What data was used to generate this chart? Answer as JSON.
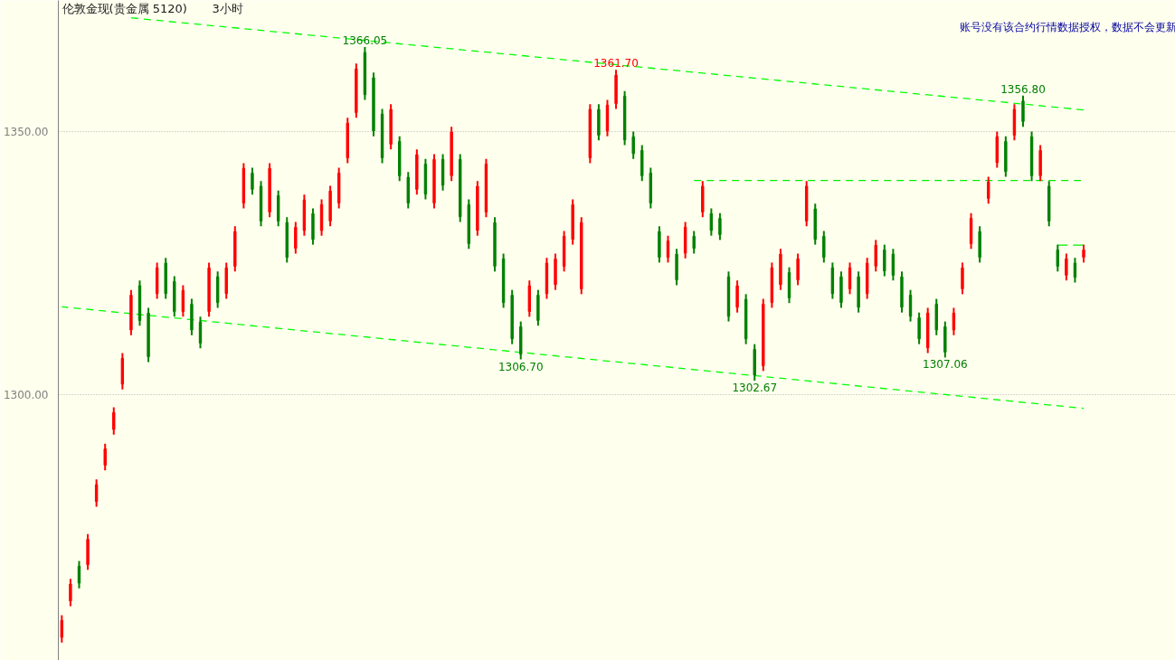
{
  "chart_data": {
    "type": "candlestick",
    "title": "伦敦金现(贵金属 5120)",
    "subtitle": "3小时",
    "annotations": [
      "账号没有该合约行情数据授权，数据不会更新",
      {
        "text": "1366.05",
        "y": 1366.05
      },
      {
        "text": "1361.70",
        "y": 1361.7
      },
      {
        "text": "1356.80",
        "y": 1356.8
      },
      {
        "text": "1306.70",
        "y": 1306.7
      },
      {
        "text": "1302.67",
        "y": 1302.67
      },
      {
        "text": "1307.06",
        "y": 1307.06
      }
    ],
    "categories": [
      null,
      null,
      null,
      null,
      null,
      null,
      null,
      null,
      null,
      null,
      null,
      null,
      null,
      null,
      null,
      null,
      null,
      null,
      null,
      null,
      null,
      null,
      null,
      null,
      null,
      null,
      null,
      null,
      null,
      null,
      null,
      null,
      null,
      null,
      null,
      null,
      null,
      null,
      null,
      null,
      null,
      null,
      null,
      null,
      null,
      null,
      null,
      null,
      null,
      null,
      null,
      null,
      null,
      null,
      null,
      null,
      null,
      null,
      null,
      null,
      null,
      null,
      null,
      null,
      null,
      null,
      null,
      null,
      null,
      null,
      null,
      null,
      null,
      null,
      null,
      null,
      null,
      null,
      null,
      null,
      null,
      null,
      null,
      null,
      null,
      null,
      null,
      null,
      null,
      null,
      null,
      null,
      null,
      null,
      null,
      null,
      null,
      null,
      null,
      null,
      null,
      null,
      null,
      null,
      null,
      null,
      null,
      null,
      null,
      null,
      null,
      null,
      null,
      null,
      null,
      null,
      null,
      null,
      null
    ],
    "ohlc": [
      [
        1253.9,
        1258.1,
        1252.9,
        1257.1
      ],
      [
        1260.8,
        1265.0,
        1259.8,
        1264.0
      ],
      [
        1267.4,
        1268.4,
        1263.2,
        1264.2
      ],
      [
        1267.7,
        1273.5,
        1266.7,
        1272.5
      ],
      [
        1279.7,
        1283.9,
        1278.7,
        1282.9
      ],
      [
        1286.6,
        1290.7,
        1285.6,
        1289.7
      ],
      [
        1293.4,
        1297.6,
        1292.4,
        1296.6
      ],
      [
        1302.0,
        1307.9,
        1301.0,
        1306.9
      ],
      [
        1312.3,
        1319.9,
        1311.3,
        1318.9
      ],
      [
        1320.7,
        1321.7,
        1313.1,
        1314.1
      ],
      [
        1315.5,
        1316.5,
        1306.2,
        1307.2
      ],
      [
        1319.2,
        1325.1,
        1318.2,
        1324.1
      ],
      [
        1325.0,
        1326.0,
        1318.2,
        1319.2
      ],
      [
        1321.5,
        1322.5,
        1314.8,
        1315.8
      ],
      [
        1315.8,
        1320.8,
        1314.8,
        1319.8
      ],
      [
        1317.2,
        1318.2,
        1311.3,
        1312.3
      ],
      [
        1313.8,
        1314.8,
        1308.8,
        1309.8
      ],
      [
        1315.8,
        1325.1,
        1314.8,
        1324.1
      ],
      [
        1322.4,
        1323.4,
        1316.5,
        1317.5
      ],
      [
        1319.2,
        1325.1,
        1318.2,
        1324.1
      ],
      [
        1324.4,
        1332.0,
        1323.4,
        1331.0
      ],
      [
        1336.4,
        1344.0,
        1335.4,
        1343.0
      ],
      [
        1342.1,
        1343.1,
        1338.0,
        1339.0
      ],
      [
        1339.6,
        1340.6,
        1332.0,
        1333.0
      ],
      [
        1334.7,
        1344.0,
        1333.7,
        1343.0
      ],
      [
        1337.8,
        1338.8,
        1332.0,
        1333.0
      ],
      [
        1332.7,
        1333.7,
        1325.1,
        1326.1
      ],
      [
        1327.8,
        1332.8,
        1326.8,
        1331.8
      ],
      [
        1331.2,
        1338.0,
        1330.2,
        1337.0
      ],
      [
        1334.4,
        1335.4,
        1328.5,
        1329.5
      ],
      [
        1331.2,
        1337.1,
        1330.2,
        1336.1
      ],
      [
        1333.0,
        1339.7,
        1332.0,
        1338.7
      ],
      [
        1336.4,
        1343.1,
        1335.4,
        1342.1
      ],
      [
        1345.0,
        1352.6,
        1344.0,
        1351.6
      ],
      [
        1353.6,
        1362.9,
        1352.6,
        1361.9
      ],
      [
        1365.0,
        1366.05,
        1356.0,
        1357.0
      ],
      [
        1360.2,
        1361.2,
        1349.1,
        1350.1
      ],
      [
        1353.3,
        1354.3,
        1344.0,
        1345.0
      ],
      [
        1347.6,
        1355.2,
        1346.6,
        1354.2
      ],
      [
        1348.1,
        1349.1,
        1340.6,
        1341.6
      ],
      [
        1341.3,
        1342.3,
        1335.4,
        1336.4
      ],
      [
        1339.0,
        1346.6,
        1338.0,
        1345.6
      ],
      [
        1343.8,
        1344.8,
        1337.1,
        1338.1
      ],
      [
        1336.4,
        1345.7,
        1335.4,
        1344.7
      ],
      [
        1344.7,
        1345.7,
        1338.8,
        1339.8
      ],
      [
        1341.6,
        1350.9,
        1340.6,
        1349.9
      ],
      [
        1344.7,
        1345.7,
        1332.8,
        1333.8
      ],
      [
        1336.1,
        1337.1,
        1327.7,
        1328.7
      ],
      [
        1331.2,
        1340.6,
        1330.2,
        1339.6
      ],
      [
        1334.7,
        1344.8,
        1333.7,
        1343.8
      ],
      [
        1332.7,
        1333.7,
        1323.4,
        1324.4
      ],
      [
        1325.8,
        1326.8,
        1316.5,
        1317.5
      ],
      [
        1318.9,
        1319.9,
        1309.6,
        1310.6
      ],
      [
        1312.9,
        1313.9,
        1306.7,
        1307.7
      ],
      [
        1315.8,
        1321.7,
        1314.8,
        1320.7
      ],
      [
        1318.9,
        1319.9,
        1313.1,
        1314.1
      ],
      [
        1319.2,
        1326.0,
        1318.2,
        1325.0
      ],
      [
        1320.9,
        1326.8,
        1319.9,
        1325.8
      ],
      [
        1324.4,
        1331.1,
        1323.4,
        1330.1
      ],
      [
        1329.5,
        1337.1,
        1328.5,
        1336.1
      ],
      [
        1320.1,
        1333.7,
        1319.1,
        1332.7
      ],
      [
        1345.0,
        1355.2,
        1344.0,
        1354.2
      ],
      [
        1354.2,
        1355.2,
        1348.3,
        1349.3
      ],
      [
        1350.1,
        1356.0,
        1349.1,
        1355.0
      ],
      [
        1355.3,
        1361.7,
        1354.3,
        1360.7
      ],
      [
        1356.7,
        1357.7,
        1347.4,
        1348.4
      ],
      [
        1349.0,
        1350.0,
        1344.8,
        1345.8
      ],
      [
        1346.4,
        1347.4,
        1340.6,
        1341.6
      ],
      [
        1342.1,
        1343.1,
        1335.4,
        1336.4
      ],
      [
        1331.0,
        1332.0,
        1325.1,
        1326.1
      ],
      [
        1326.1,
        1330.2,
        1325.1,
        1329.2
      ],
      [
        1326.7,
        1327.7,
        1320.8,
        1321.8
      ],
      [
        1326.9,
        1332.8,
        1325.9,
        1331.8
      ],
      [
        1330.1,
        1331.1,
        1326.8,
        1327.8
      ],
      [
        1334.7,
        1340.6,
        1333.7,
        1339.6
      ],
      [
        1334.4,
        1335.4,
        1330.2,
        1331.2
      ],
      [
        1333.5,
        1334.5,
        1329.4,
        1330.4
      ],
      [
        1322.4,
        1323.4,
        1313.9,
        1314.9
      ],
      [
        1316.6,
        1321.7,
        1315.6,
        1320.7
      ],
      [
        1318.1,
        1319.1,
        1309.6,
        1310.6
      ],
      [
        1308.6,
        1309.6,
        1302.67,
        1303.7
      ],
      [
        1305.5,
        1318.2,
        1304.5,
        1317.2
      ],
      [
        1317.5,
        1325.1,
        1316.5,
        1324.1
      ],
      [
        1320.9,
        1327.7,
        1319.9,
        1326.7
      ],
      [
        1323.2,
        1324.2,
        1317.4,
        1318.4
      ],
      [
        1321.8,
        1326.8,
        1320.8,
        1325.8
      ],
      [
        1333.0,
        1340.6,
        1332.0,
        1339.6
      ],
      [
        1335.3,
        1336.3,
        1328.5,
        1329.5
      ],
      [
        1330.1,
        1331.1,
        1325.1,
        1326.1
      ],
      [
        1324.1,
        1325.1,
        1318.2,
        1319.2
      ],
      [
        1322.4,
        1323.4,
        1316.5,
        1317.5
      ],
      [
        1320.1,
        1325.1,
        1319.1,
        1324.1
      ],
      [
        1322.4,
        1323.4,
        1315.6,
        1316.6
      ],
      [
        1319.2,
        1326.0,
        1318.2,
        1325.0
      ],
      [
        1324.4,
        1329.4,
        1323.4,
        1328.4
      ],
      [
        1327.5,
        1328.5,
        1322.5,
        1323.5
      ],
      [
        1326.7,
        1327.7,
        1321.7,
        1322.7
      ],
      [
        1322.4,
        1323.4,
        1315.6,
        1316.6
      ],
      [
        1318.9,
        1319.9,
        1313.9,
        1314.9
      ],
      [
        1314.6,
        1315.6,
        1309.6,
        1310.6
      ],
      [
        1308.9,
        1316.5,
        1307.9,
        1315.5
      ],
      [
        1317.2,
        1318.2,
        1311.3,
        1312.3
      ],
      [
        1312.9,
        1313.9,
        1307.06,
        1308.1
      ],
      [
        1312.3,
        1316.5,
        1311.3,
        1315.5
      ],
      [
        1320.1,
        1325.1,
        1319.1,
        1324.1
      ],
      [
        1328.7,
        1334.5,
        1327.7,
        1333.5
      ],
      [
        1331.0,
        1332.0,
        1325.1,
        1326.1
      ],
      [
        1337.3,
        1341.4,
        1336.3,
        1340.4
      ],
      [
        1344.1,
        1350.0,
        1343.1,
        1349.0
      ],
      [
        1348.1,
        1349.1,
        1341.4,
        1342.4
      ],
      [
        1349.3,
        1355.2,
        1348.3,
        1354.2
      ],
      [
        1355.8,
        1356.8,
        1350.9,
        1351.9
      ],
      [
        1349.0,
        1350.0,
        1340.6,
        1341.6
      ],
      [
        1341.6,
        1347.4,
        1340.6,
        1346.4
      ],
      [
        1339.6,
        1340.6,
        1332.0,
        1333.0
      ],
      [
        1327.5,
        1328.5,
        1323.4,
        1324.4
      ],
      [
        1322.7,
        1326.8,
        1321.7,
        1325.8
      ],
      [
        1325.0,
        1326.0,
        1321.3,
        1322.3
      ],
      [
        1326.1,
        1328.5,
        1325.1,
        1327.5
      ]
    ],
    "colors": [
      "#ff0000",
      "#ff0000",
      "#008000",
      "#ff0000",
      "#ff0000",
      "#ff0000",
      "#ff0000",
      "#ff0000",
      "#ff0000",
      "#008000",
      "#008000",
      "#ff0000",
      "#008000",
      "#008000",
      "#ff0000",
      "#008000",
      "#008000",
      "#ff0000",
      "#008000",
      "#ff0000",
      "#ff0000",
      "#ff0000",
      "#008000",
      "#008000",
      "#ff0000",
      "#008000",
      "#008000",
      "#ff0000",
      "#ff0000",
      "#008000",
      "#ff0000",
      "#ff0000",
      "#ff0000",
      "#ff0000",
      "#ff0000",
      "#008000",
      "#008000",
      "#008000",
      "#ff0000",
      "#008000",
      "#008000",
      "#ff0000",
      "#008000",
      "#ff0000",
      "#008000",
      "#ff0000",
      "#008000",
      "#008000",
      "#ff0000",
      "#ff0000",
      "#008000",
      "#008000",
      "#008000",
      "#008000",
      "#ff0000",
      "#008000",
      "#ff0000",
      "#ff0000",
      "#ff0000",
      "#ff0000",
      "#ff0000",
      "#ff0000",
      "#008000",
      "#ff0000",
      "#ff0000",
      "#008000",
      "#008000",
      "#008000",
      "#008000",
      "#008000",
      "#ff0000",
      "#008000",
      "#ff0000",
      "#008000",
      "#ff0000",
      "#008000",
      "#008000",
      "#008000",
      "#ff0000",
      "#008000",
      "#008000",
      "#ff0000",
      "#ff0000",
      "#ff0000",
      "#008000",
      "#ff0000",
      "#ff0000",
      "#008000",
      "#008000",
      "#008000",
      "#008000",
      "#ff0000",
      "#008000",
      "#ff0000",
      "#ff0000",
      "#008000",
      "#008000",
      "#008000",
      "#008000",
      "#008000",
      "#ff0000",
      "#008000",
      "#008000",
      "#ff0000",
      "#ff0000",
      "#ff0000",
      "#008000",
      "#ff0000",
      "#ff0000",
      "#008000",
      "#ff0000",
      "#008000",
      "#008000",
      "#ff0000",
      "#008000",
      "#008000",
      "#ff0000",
      "#008000",
      "#ff0000"
    ],
    "series": [
      {
        "type": "line",
        "color": "#00ff00",
        "line_style": "dashed",
        "values": [
          null,
          null,
          null,
          null,
          null,
          null,
          null,
          null,
          1371.6,
          null,
          null,
          null,
          null,
          null,
          null,
          null,
          null,
          null,
          null,
          null,
          null,
          null,
          null,
          null,
          null,
          null,
          null,
          null,
          null,
          null,
          null,
          null,
          null,
          null,
          null,
          null,
          null,
          null,
          null,
          null,
          null,
          null,
          null,
          null,
          null,
          null,
          null,
          null,
          null,
          null,
          null,
          null,
          null,
          null,
          null,
          null,
          null,
          null,
          null,
          null,
          null,
          null,
          null,
          null,
          null,
          null,
          null,
          null,
          null,
          null,
          null,
          null,
          null,
          null,
          null,
          null,
          null,
          null,
          null,
          null,
          null,
          null,
          null,
          null,
          null,
          null,
          null,
          null,
          null,
          null,
          null,
          null,
          null,
          null,
          null,
          null,
          null,
          null,
          null,
          null,
          null,
          null,
          null,
          null,
          null,
          null,
          null,
          null,
          null,
          null,
          null,
          null,
          null,
          null,
          null,
          null,
          null,
          null,
          1354.1
        ]
      },
      {
        "type": "line",
        "color": "#00ff00",
        "line_style": "dashed",
        "values": [
          1316.7,
          null,
          null,
          null,
          null,
          null,
          null,
          null,
          null,
          null,
          null,
          null,
          null,
          null,
          null,
          null,
          null,
          null,
          null,
          null,
          null,
          null,
          null,
          null,
          null,
          null,
          null,
          null,
          null,
          null,
          null,
          null,
          null,
          null,
          null,
          null,
          null,
          null,
          null,
          null,
          null,
          null,
          null,
          null,
          null,
          null,
          null,
          null,
          null,
          null,
          null,
          null,
          null,
          null,
          null,
          null,
          null,
          null,
          null,
          null,
          null,
          null,
          null,
          null,
          null,
          null,
          null,
          null,
          null,
          null,
          null,
          null,
          null,
          null,
          null,
          null,
          null,
          null,
          null,
          null,
          null,
          null,
          null,
          null,
          null,
          null,
          null,
          null,
          null,
          null,
          null,
          null,
          null,
          null,
          null,
          null,
          null,
          null,
          null,
          null,
          null,
          null,
          null,
          null,
          null,
          null,
          null,
          null,
          null,
          null,
          null,
          null,
          null,
          null,
          null,
          null,
          null,
          null,
          1297.4
        ]
      },
      {
        "type": "line",
        "color": "#00ee00",
        "line_style": "dashed",
        "values": [
          null,
          null,
          null,
          null,
          null,
          null,
          null,
          null,
          null,
          null,
          null,
          null,
          null,
          null,
          null,
          null,
          null,
          null,
          null,
          null,
          null,
          null,
          null,
          null,
          null,
          null,
          null,
          null,
          null,
          null,
          null,
          null,
          null,
          null,
          null,
          null,
          null,
          null,
          null,
          null,
          null,
          null,
          null,
          null,
          null,
          null,
          null,
          null,
          null,
          null,
          null,
          null,
          null,
          null,
          null,
          null,
          null,
          null,
          null,
          null,
          null,
          null,
          null,
          null,
          null,
          null,
          null,
          null,
          null,
          null,
          null,
          null,
          null,
          1340.7,
          null,
          null,
          null,
          null,
          null,
          null,
          null,
          null,
          null,
          null,
          null,
          null,
          null,
          null,
          null,
          null,
          null,
          null,
          null,
          null,
          null,
          null,
          null,
          null,
          null,
          null,
          null,
          null,
          null,
          null,
          null,
          null,
          null,
          null,
          null,
          null,
          null,
          null,
          null,
          null,
          null,
          null,
          null,
          null,
          1340.7
        ]
      },
      {
        "type": "line",
        "color": "#00ee00",
        "line_style": "dashed",
        "values": [
          null,
          null,
          null,
          null,
          null,
          null,
          null,
          null,
          null,
          null,
          null,
          null,
          null,
          null,
          null,
          null,
          null,
          null,
          null,
          null,
          null,
          null,
          null,
          null,
          null,
          null,
          null,
          null,
          null,
          null,
          null,
          null,
          null,
          null,
          null,
          null,
          null,
          null,
          null,
          null,
          null,
          null,
          null,
          null,
          null,
          null,
          null,
          null,
          null,
          null,
          null,
          null,
          null,
          null,
          null,
          null,
          null,
          null,
          null,
          null,
          null,
          null,
          null,
          null,
          null,
          null,
          null,
          null,
          null,
          null,
          null,
          null,
          null,
          null,
          null,
          null,
          null,
          null,
          null,
          null,
          null,
          null,
          null,
          null,
          null,
          null,
          null,
          null,
          null,
          null,
          null,
          null,
          null,
          null,
          null,
          null,
          null,
          null,
          null,
          null,
          null,
          null,
          null,
          null,
          null,
          null,
          null,
          null,
          null,
          null,
          null,
          null,
          null,
          null,
          null,
          1328.4,
          null,
          null,
          1328.4
        ]
      }
    ],
    "ylim": [
      1249.5,
      1374.9
    ],
    "yticks": [
      {
        "value": 1300,
        "label": "1300.00"
      },
      {
        "value": 1350,
        "label": "1350.00"
      }
    ],
    "grid": "y",
    "tick_labels": "y"
  }
}
